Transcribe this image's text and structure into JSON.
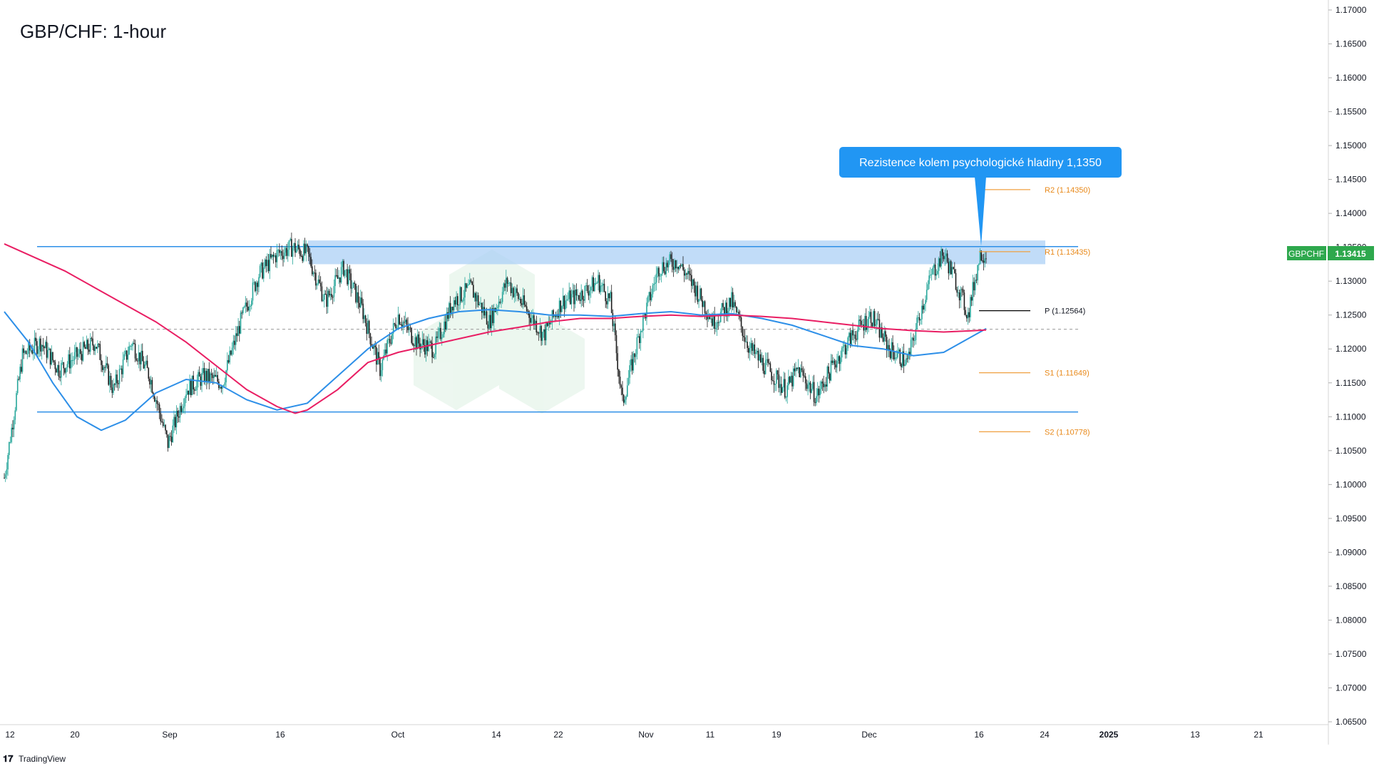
{
  "title": "GBP/CHF: 1-hour",
  "branding": "TradingView",
  "colors": {
    "bullish": "#26a69a",
    "bearish": "#1e1e1e",
    "ema_blue": "#2d8fe8",
    "ema_pink": "#e91e63",
    "zone": "#a7cdf5",
    "pivot_orange": "#f0a040",
    "pivot_black": "#000000",
    "price_tag": "#2ea84d",
    "callout": "#2196f3"
  },
  "callout": {
    "text": "Rezistence kolem psychologické hladiny 1,1350"
  },
  "price_tag": {
    "symbol": "GBPCHF",
    "value": "1.13415"
  },
  "chart_data": {
    "type": "line",
    "title": "GBP/CHF: 1-hour",
    "ylim": [
      1.065,
      1.17
    ],
    "y_ticks": [
      "1.17000",
      "1.16500",
      "1.16000",
      "1.15500",
      "1.15000",
      "1.14500",
      "1.14000",
      "1.13500",
      "1.13000",
      "1.12500",
      "1.12000",
      "1.11500",
      "1.11000",
      "1.10500",
      "1.10000",
      "1.09500",
      "1.09000",
      "1.08500",
      "1.08000",
      "1.07500",
      "1.07000",
      "1.06500"
    ],
    "x_ticks": [
      "12",
      "20",
      "Sep",
      "16",
      "Oct",
      "14",
      "22",
      "Nov",
      "11",
      "19",
      "Dec",
      "16",
      "24",
      "2025",
      "13",
      "21"
    ],
    "price_path": [
      [
        0,
        1.101
      ],
      [
        30,
        1.119
      ],
      [
        60,
        1.121
      ],
      [
        90,
        1.117
      ],
      [
        120,
        1.119
      ],
      [
        150,
        1.121
      ],
      [
        180,
        1.114
      ],
      [
        210,
        1.121
      ],
      [
        240,
        1.116
      ],
      [
        270,
        1.106
      ],
      [
        300,
        1.114
      ],
      [
        330,
        1.116
      ],
      [
        360,
        1.115
      ],
      [
        390,
        1.124
      ],
      [
        420,
        1.131
      ],
      [
        450,
        1.134
      ],
      [
        475,
        1.135
      ],
      [
        500,
        1.134
      ],
      [
        530,
        1.127
      ],
      [
        560,
        1.132
      ],
      [
        590,
        1.126
      ],
      [
        620,
        1.117
      ],
      [
        650,
        1.125
      ],
      [
        680,
        1.121
      ],
      [
        710,
        1.12
      ],
      [
        740,
        1.127
      ],
      [
        770,
        1.129
      ],
      [
        800,
        1.124
      ],
      [
        830,
        1.13
      ],
      [
        860,
        1.126
      ],
      [
        890,
        1.122
      ],
      [
        920,
        1.127
      ],
      [
        950,
        1.128
      ],
      [
        980,
        1.13
      ],
      [
        1000,
        1.127
      ],
      [
        1020,
        1.112
      ],
      [
        1050,
        1.123
      ],
      [
        1080,
        1.132
      ],
      [
        1110,
        1.133
      ],
      [
        1140,
        1.129
      ],
      [
        1170,
        1.124
      ],
      [
        1200,
        1.127
      ],
      [
        1230,
        1.12
      ],
      [
        1260,
        1.117
      ],
      [
        1290,
        1.114
      ],
      [
        1310,
        1.117
      ],
      [
        1340,
        1.113
      ],
      [
        1370,
        1.118
      ],
      [
        1400,
        1.122
      ],
      [
        1430,
        1.125
      ],
      [
        1460,
        1.12
      ],
      [
        1490,
        1.118
      ],
      [
        1510,
        1.125
      ],
      [
        1530,
        1.131
      ],
      [
        1550,
        1.134
      ],
      [
        1570,
        1.13
      ],
      [
        1590,
        1.125
      ],
      [
        1610,
        1.134
      ],
      [
        1620,
        1.13415
      ]
    ],
    "series": [
      {
        "name": "",
        "points": [
          [
            0,
            1.1255
          ],
          [
            40,
            1.121
          ],
          [
            80,
            1.115
          ],
          [
            120,
            1.11
          ],
          [
            160,
            1.108
          ],
          [
            200,
            1.1095
          ],
          [
            250,
            1.1135
          ],
          [
            300,
            1.1155
          ],
          [
            350,
            1.115
          ],
          [
            400,
            1.1125
          ],
          [
            450,
            1.111
          ],
          [
            500,
            1.112
          ],
          [
            550,
            1.116
          ],
          [
            600,
            1.12
          ],
          [
            650,
            1.123
          ],
          [
            700,
            1.1245
          ],
          [
            750,
            1.1255
          ],
          [
            800,
            1.1258
          ],
          [
            850,
            1.1255
          ],
          [
            900,
            1.125
          ],
          [
            950,
            1.125
          ],
          [
            1000,
            1.1248
          ],
          [
            1050,
            1.1252
          ],
          [
            1100,
            1.1255
          ],
          [
            1150,
            1.125
          ],
          [
            1200,
            1.1252
          ],
          [
            1250,
            1.1245
          ],
          [
            1300,
            1.1235
          ],
          [
            1350,
            1.122
          ],
          [
            1400,
            1.1205
          ],
          [
            1450,
            1.12
          ],
          [
            1500,
            1.119
          ],
          [
            1550,
            1.1195
          ],
          [
            1600,
            1.122
          ],
          [
            1620,
            1.123
          ]
        ]
      },
      {
        "name": "",
        "points": [
          [
            0,
            1.1355
          ],
          [
            50,
            1.1335
          ],
          [
            100,
            1.1315
          ],
          [
            150,
            1.129
          ],
          [
            200,
            1.1265
          ],
          [
            250,
            1.124
          ],
          [
            300,
            1.121
          ],
          [
            350,
            1.1175
          ],
          [
            400,
            1.114
          ],
          [
            450,
            1.1115
          ],
          [
            480,
            1.1105
          ],
          [
            500,
            1.111
          ],
          [
            550,
            1.114
          ],
          [
            600,
            1.118
          ],
          [
            650,
            1.1195
          ],
          [
            700,
            1.1205
          ],
          [
            750,
            1.1215
          ],
          [
            800,
            1.1225
          ],
          [
            850,
            1.1232
          ],
          [
            900,
            1.124
          ],
          [
            950,
            1.1245
          ],
          [
            1000,
            1.1245
          ],
          [
            1050,
            1.1248
          ],
          [
            1100,
            1.125
          ],
          [
            1150,
            1.1248
          ],
          [
            1200,
            1.125
          ],
          [
            1250,
            1.1248
          ],
          [
            1300,
            1.1245
          ],
          [
            1350,
            1.124
          ],
          [
            1400,
            1.1235
          ],
          [
            1450,
            1.123
          ],
          [
            1500,
            1.1227
          ],
          [
            1550,
            1.1225
          ],
          [
            1600,
            1.1227
          ],
          [
            1620,
            1.1228
          ]
        ]
      }
    ],
    "zones": [
      {
        "from": 1.1325,
        "to": 1.136
      }
    ],
    "levels": [
      {
        "label": "R2 (1.14350)",
        "value": 1.1435
      },
      {
        "label": "R1 (1.13435)",
        "value": 1.13435
      },
      {
        "label": "P (1.12564)",
        "value": 1.12564
      },
      {
        "label": "S1 (1.11649)",
        "value": 1.11649
      },
      {
        "label": "S2 (1.10778)",
        "value": 1.10778
      }
    ],
    "horizontal_lines": [
      1.1351,
      1.1107,
      1.1229
    ]
  }
}
